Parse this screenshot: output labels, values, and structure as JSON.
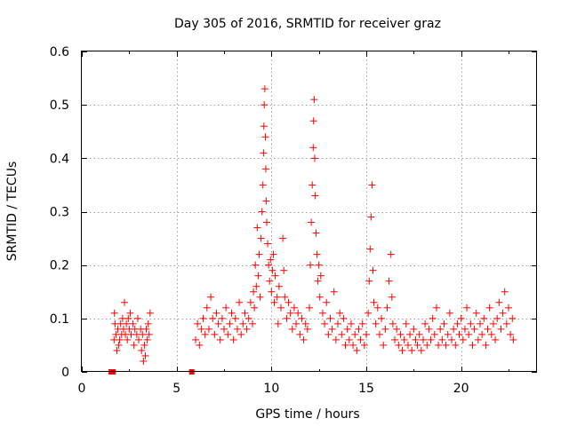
{
  "chart_data": {
    "type": "scatter",
    "title": "Day 305 of 2016, SRMTID for receiver graz",
    "xlabel": "GPS time / hours",
    "ylabel": "SRMTID / TECUs",
    "xlim": [
      0,
      24
    ],
    "ylim": [
      0,
      0.6
    ],
    "x_ticks": [
      0,
      5,
      10,
      15,
      20
    ],
    "x_tick_labels": [
      "0",
      "5",
      "10",
      "15",
      "20"
    ],
    "y_ticks": [
      0,
      0.1,
      0.2,
      0.3,
      0.4,
      0.5,
      0.6
    ],
    "y_tick_labels": [
      "0",
      "0.1",
      "0.2",
      "0.3",
      "0.4",
      "0.5",
      "0.6"
    ],
    "grid": true,
    "marker": "plus",
    "color": "#ff0000",
    "series": [
      {
        "name": "SRMTID",
        "points": [
          [
            1.55,
            0.0
          ],
          [
            1.65,
            0.0
          ],
          [
            5.8,
            0.0
          ],
          [
            1.7,
            0.06
          ],
          [
            1.75,
            0.09
          ],
          [
            1.8,
            0.07
          ],
          [
            1.85,
            0.04
          ],
          [
            1.9,
            0.08
          ],
          [
            1.95,
            0.05
          ],
          [
            2.0,
            0.06
          ],
          [
            2.05,
            0.09
          ],
          [
            2.1,
            0.07
          ],
          [
            2.15,
            0.1
          ],
          [
            2.2,
            0.08
          ],
          [
            2.25,
            0.13
          ],
          [
            2.3,
            0.07
          ],
          [
            2.35,
            0.09
          ],
          [
            2.4,
            0.06
          ],
          [
            2.5,
            0.08
          ],
          [
            2.55,
            0.11
          ],
          [
            2.6,
            0.07
          ],
          [
            2.7,
            0.09
          ],
          [
            2.75,
            0.05
          ],
          [
            2.8,
            0.08
          ],
          [
            2.9,
            0.07
          ],
          [
            2.95,
            0.1
          ],
          [
            3.0,
            0.06
          ],
          [
            3.1,
            0.08
          ],
          [
            3.15,
            0.04
          ],
          [
            3.2,
            0.07
          ],
          [
            3.3,
            0.05
          ],
          [
            3.35,
            0.03
          ],
          [
            3.4,
            0.08
          ],
          [
            3.45,
            0.06
          ],
          [
            3.5,
            0.09
          ],
          [
            3.55,
            0.07
          ],
          [
            3.6,
            0.11
          ],
          [
            1.72,
            0.11
          ],
          [
            2.45,
            0.1
          ],
          [
            3.25,
            0.02
          ],
          [
            6.0,
            0.06
          ],
          [
            6.1,
            0.09
          ],
          [
            6.2,
            0.05
          ],
          [
            6.3,
            0.08
          ],
          [
            6.4,
            0.1
          ],
          [
            6.5,
            0.07
          ],
          [
            6.6,
            0.12
          ],
          [
            6.7,
            0.08
          ],
          [
            6.8,
            0.14
          ],
          [
            6.9,
            0.1
          ],
          [
            7.0,
            0.07
          ],
          [
            7.1,
            0.11
          ],
          [
            7.2,
            0.09
          ],
          [
            7.3,
            0.06
          ],
          [
            7.4,
            0.1
          ],
          [
            7.5,
            0.08
          ],
          [
            7.6,
            0.12
          ],
          [
            7.7,
            0.07
          ],
          [
            7.8,
            0.09
          ],
          [
            7.9,
            0.11
          ],
          [
            8.0,
            0.06
          ],
          [
            8.1,
            0.1
          ],
          [
            8.2,
            0.08
          ],
          [
            8.3,
            0.13
          ],
          [
            8.4,
            0.07
          ],
          [
            8.5,
            0.09
          ],
          [
            8.6,
            0.11
          ],
          [
            8.7,
            0.08
          ],
          [
            8.8,
            0.1
          ],
          [
            8.9,
            0.13
          ],
          [
            9.0,
            0.09
          ],
          [
            9.05,
            0.15
          ],
          [
            9.1,
            0.12
          ],
          [
            9.15,
            0.2
          ],
          [
            9.2,
            0.16
          ],
          [
            9.25,
            0.27
          ],
          [
            9.3,
            0.18
          ],
          [
            9.35,
            0.22
          ],
          [
            9.4,
            0.14
          ],
          [
            9.45,
            0.25
          ],
          [
            9.5,
            0.3
          ],
          [
            9.55,
            0.35
          ],
          [
            9.58,
            0.41
          ],
          [
            9.6,
            0.46
          ],
          [
            9.62,
            0.5
          ],
          [
            9.65,
            0.53
          ],
          [
            9.68,
            0.44
          ],
          [
            9.7,
            0.38
          ],
          [
            9.72,
            0.32
          ],
          [
            9.75,
            0.28
          ],
          [
            9.8,
            0.24
          ],
          [
            9.85,
            0.2
          ],
          [
            9.9,
            0.17
          ],
          [
            9.95,
            0.21
          ],
          [
            10.0,
            0.15
          ],
          [
            10.05,
            0.19
          ],
          [
            10.1,
            0.22
          ],
          [
            10.15,
            0.13
          ],
          [
            10.2,
            0.18
          ],
          [
            10.3,
            0.14
          ],
          [
            10.35,
            0.09
          ],
          [
            10.4,
            0.16
          ],
          [
            10.5,
            0.12
          ],
          [
            10.6,
            0.25
          ],
          [
            10.65,
            0.19
          ],
          [
            10.7,
            0.14
          ],
          [
            10.8,
            0.1
          ],
          [
            10.9,
            0.13
          ],
          [
            11.0,
            0.11
          ],
          [
            11.1,
            0.08
          ],
          [
            11.2,
            0.12
          ],
          [
            11.3,
            0.09
          ],
          [
            11.4,
            0.11
          ],
          [
            11.5,
            0.07
          ],
          [
            11.6,
            0.1
          ],
          [
            11.7,
            0.06
          ],
          [
            11.8,
            0.09
          ],
          [
            11.9,
            0.08
          ],
          [
            12.0,
            0.12
          ],
          [
            12.05,
            0.2
          ],
          [
            12.1,
            0.28
          ],
          [
            12.15,
            0.35
          ],
          [
            12.2,
            0.42
          ],
          [
            12.22,
            0.47
          ],
          [
            12.25,
            0.51
          ],
          [
            12.28,
            0.4
          ],
          [
            12.3,
            0.33
          ],
          [
            12.35,
            0.26
          ],
          [
            12.4,
            0.22
          ],
          [
            12.45,
            0.17
          ],
          [
            12.5,
            0.2
          ],
          [
            12.55,
            0.14
          ],
          [
            12.6,
            0.18
          ],
          [
            12.7,
            0.11
          ],
          [
            12.8,
            0.09
          ],
          [
            12.9,
            0.13
          ],
          [
            13.0,
            0.07
          ],
          [
            13.1,
            0.1
          ],
          [
            13.2,
            0.08
          ],
          [
            13.3,
            0.15
          ],
          [
            13.4,
            0.06
          ],
          [
            13.5,
            0.09
          ],
          [
            13.6,
            0.11
          ],
          [
            13.7,
            0.07
          ],
          [
            13.8,
            0.1
          ],
          [
            13.9,
            0.05
          ],
          [
            14.0,
            0.08
          ],
          [
            14.1,
            0.06
          ],
          [
            14.2,
            0.09
          ],
          [
            14.3,
            0.05
          ],
          [
            14.4,
            0.07
          ],
          [
            14.5,
            0.04
          ],
          [
            14.6,
            0.08
          ],
          [
            14.7,
            0.06
          ],
          [
            14.8,
            0.09
          ],
          [
            14.9,
            0.05
          ],
          [
            15.0,
            0.07
          ],
          [
            15.1,
            0.11
          ],
          [
            15.15,
            0.17
          ],
          [
            15.2,
            0.23
          ],
          [
            15.25,
            0.29
          ],
          [
            15.3,
            0.35
          ],
          [
            15.35,
            0.19
          ],
          [
            15.4,
            0.13
          ],
          [
            15.5,
            0.09
          ],
          [
            15.6,
            0.12
          ],
          [
            15.7,
            0.07
          ],
          [
            15.8,
            0.1
          ],
          [
            15.9,
            0.05
          ],
          [
            16.0,
            0.08
          ],
          [
            16.1,
            0.12
          ],
          [
            16.2,
            0.17
          ],
          [
            16.3,
            0.22
          ],
          [
            16.35,
            0.14
          ],
          [
            16.4,
            0.09
          ],
          [
            16.5,
            0.06
          ],
          [
            16.6,
            0.08
          ],
          [
            16.7,
            0.05
          ],
          [
            16.8,
            0.07
          ],
          [
            16.9,
            0.04
          ],
          [
            17.0,
            0.06
          ],
          [
            17.1,
            0.09
          ],
          [
            17.2,
            0.05
          ],
          [
            17.3,
            0.07
          ],
          [
            17.4,
            0.04
          ],
          [
            17.5,
            0.08
          ],
          [
            17.6,
            0.06
          ],
          [
            17.7,
            0.05
          ],
          [
            17.8,
            0.07
          ],
          [
            17.9,
            0.04
          ],
          [
            18.0,
            0.06
          ],
          [
            18.1,
            0.09
          ],
          [
            18.2,
            0.05
          ],
          [
            18.3,
            0.08
          ],
          [
            18.4,
            0.06
          ],
          [
            18.5,
            0.1
          ],
          [
            18.6,
            0.07
          ],
          [
            18.7,
            0.12
          ],
          [
            18.8,
            0.05
          ],
          [
            18.9,
            0.08
          ],
          [
            19.0,
            0.06
          ],
          [
            19.1,
            0.09
          ],
          [
            19.2,
            0.05
          ],
          [
            19.3,
            0.07
          ],
          [
            19.4,
            0.11
          ],
          [
            19.5,
            0.06
          ],
          [
            19.6,
            0.08
          ],
          [
            19.7,
            0.05
          ],
          [
            19.8,
            0.09
          ],
          [
            19.9,
            0.07
          ],
          [
            20.0,
            0.1
          ],
          [
            20.1,
            0.06
          ],
          [
            20.2,
            0.08
          ],
          [
            20.3,
            0.12
          ],
          [
            20.4,
            0.07
          ],
          [
            20.5,
            0.09
          ],
          [
            20.6,
            0.05
          ],
          [
            20.7,
            0.08
          ],
          [
            20.8,
            0.11
          ],
          [
            20.9,
            0.06
          ],
          [
            21.0,
            0.09
          ],
          [
            21.1,
            0.07
          ],
          [
            21.2,
            0.1
          ],
          [
            21.3,
            0.05
          ],
          [
            21.4,
            0.08
          ],
          [
            21.5,
            0.12
          ],
          [
            21.6,
            0.07
          ],
          [
            21.7,
            0.09
          ],
          [
            21.8,
            0.06
          ],
          [
            21.9,
            0.1
          ],
          [
            22.0,
            0.13
          ],
          [
            22.1,
            0.08
          ],
          [
            22.2,
            0.11
          ],
          [
            22.3,
            0.15
          ],
          [
            22.4,
            0.09
          ],
          [
            22.5,
            0.12
          ],
          [
            22.6,
            0.07
          ],
          [
            22.7,
            0.1
          ],
          [
            22.75,
            0.06
          ]
        ]
      }
    ]
  }
}
